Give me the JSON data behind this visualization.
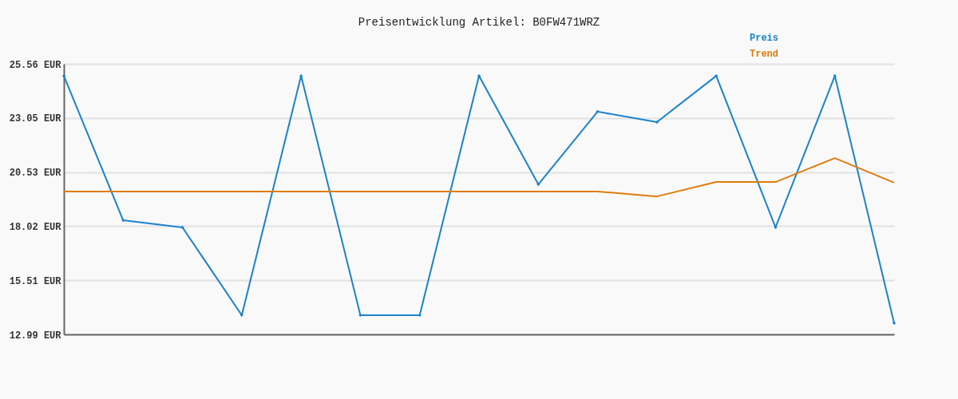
{
  "chart_data": {
    "type": "line",
    "title": "Preisentwicklung Artikel: B0FW471WRZ",
    "categories": [
      null,
      null,
      null,
      null,
      null,
      null,
      null,
      null,
      null,
      null,
      null,
      null,
      null,
      null,
      null
    ],
    "series": [
      {
        "name": "Preis",
        "color": "#1a82cf",
        "marker": "diamond",
        "values": [
          25.0,
          18.29,
          17.96,
          13.88,
          25.0,
          13.88,
          13.88,
          25.0,
          19.96,
          23.34,
          22.85,
          25.0,
          17.96,
          25.0,
          13.51
        ]
      },
      {
        "name": "Trend",
        "color": "#e07b10",
        "marker": "none",
        "values": [
          19.63,
          19.63,
          19.63,
          19.63,
          19.63,
          19.63,
          19.63,
          19.63,
          19.63,
          19.63,
          19.4,
          20.07,
          20.07,
          21.18,
          20.04
        ]
      }
    ],
    "ylim": [
      12.99,
      25.56
    ],
    "yticks": [
      {
        "value": 12.99,
        "label": "12.99 EUR"
      },
      {
        "value": 15.51,
        "label": "15.51 EUR"
      },
      {
        "value": 18.02,
        "label": "18.02 EUR"
      },
      {
        "value": 20.53,
        "label": "20.53 EUR"
      },
      {
        "value": 23.05,
        "label": "23.05 EUR"
      },
      {
        "value": 25.56,
        "label": "25.56 EUR"
      }
    ],
    "grid": "y",
    "legend": "top right",
    "line_style": "solid"
  }
}
